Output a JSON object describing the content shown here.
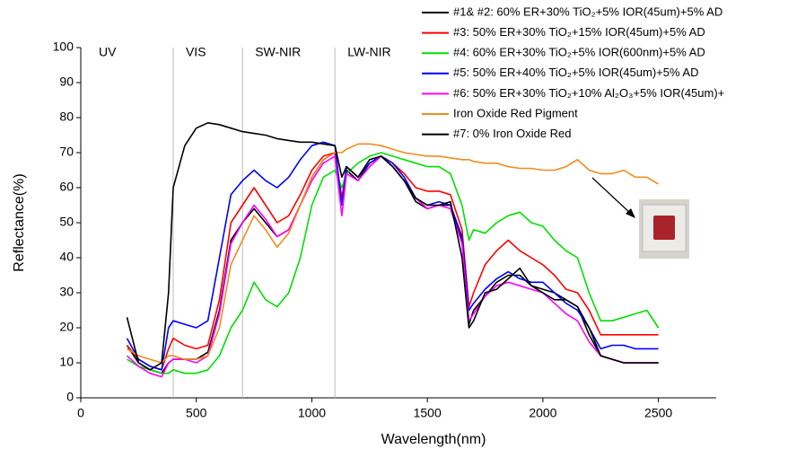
{
  "chart_data": {
    "type": "line",
    "x_label": "Wavelength(nm)",
    "y_label": "Reflectance(%)",
    "xlim": [
      0,
      2750
    ],
    "ylim": [
      0,
      100
    ],
    "xticks": [
      0,
      500,
      1000,
      1500,
      2000,
      2500
    ],
    "yticks": [
      0,
      10,
      20,
      30,
      40,
      50,
      60,
      70,
      80,
      90,
      100
    ],
    "region_boundaries": [
      400,
      700,
      1100
    ],
    "region_labels": [
      "UV",
      "VIS",
      "SW-NIR",
      "LW-NIR"
    ],
    "x": [
      200,
      250,
      300,
      350,
      380,
      400,
      450,
      500,
      550,
      600,
      650,
      700,
      750,
      800,
      850,
      900,
      950,
      1000,
      1050,
      1100,
      1130,
      1150,
      1200,
      1250,
      1300,
      1350,
      1400,
      1450,
      1500,
      1550,
      1600,
      1650,
      1680,
      1700,
      1750,
      1800,
      1850,
      1900,
      1950,
      2000,
      2050,
      2100,
      2150,
      2200,
      2250,
      2300,
      2350,
      2400,
      2450,
      2500
    ],
    "series": [
      {
        "name": "#1& #2: 60% ER+30% TiO₂+5% IOR(45um)+5% AD",
        "color": "#000000",
        "values": [
          15,
          10,
          8,
          7,
          10,
          11,
          11,
          11,
          13,
          25,
          45,
          50,
          54,
          50,
          46,
          48,
          55,
          63,
          68,
          70,
          56,
          65,
          62,
          67,
          69,
          66,
          62,
          56,
          54,
          55,
          55,
          45,
          21,
          25,
          29,
          33,
          35,
          35,
          32,
          31,
          30,
          28,
          26,
          18,
          12,
          11,
          10,
          10,
          10,
          10
        ]
      },
      {
        "name": "#3: 50% ER+30% TiO₂+15% IOR(45um)+5% AD",
        "color": "#ff0000",
        "values": [
          15,
          11,
          9,
          8,
          14,
          17,
          15,
          14,
          15,
          28,
          50,
          55,
          60,
          55,
          50,
          52,
          58,
          65,
          69,
          70,
          57,
          66,
          63,
          67,
          69,
          67,
          64,
          60,
          59,
          59,
          58,
          48,
          26,
          30,
          38,
          42,
          45,
          42,
          40,
          38,
          35,
          31,
          30,
          25,
          18,
          18,
          18,
          18,
          18,
          18
        ]
      },
      {
        "name": "#4: 60% ER+30% TiO₂+5% IOR(600nm)+5% AD",
        "color": "#00e000",
        "values": [
          11,
          9,
          8,
          7,
          7,
          8,
          7,
          7,
          8,
          12,
          20,
          25,
          33,
          28,
          26,
          30,
          40,
          55,
          63,
          65,
          60,
          64,
          67,
          69,
          70,
          69,
          68,
          67,
          66,
          66,
          64,
          55,
          45,
          48,
          47,
          50,
          52,
          53,
          50,
          49,
          45,
          42,
          40,
          30,
          22,
          22,
          23,
          24,
          25,
          20
        ]
      },
      {
        "name": "#5: 50% ER+40% TiO₂+5% IOR(45um)+5% AD",
        "color": "#0000ff",
        "values": [
          17,
          11,
          9,
          8,
          20,
          22,
          21,
          20,
          22,
          40,
          58,
          62,
          65,
          62,
          60,
          63,
          68,
          72,
          73,
          72,
          55,
          66,
          63,
          67,
          69,
          67,
          63,
          57,
          55,
          56,
          55,
          46,
          25,
          27,
          31,
          34,
          36,
          34,
          33,
          33,
          30,
          27,
          25,
          20,
          14,
          15,
          15,
          14,
          14,
          14
        ]
      },
      {
        "name": "#6: 50% ER+30% TiO₂+10% Al₂O₃+5% IOR(45um)+",
        "color": "#ff00ff",
        "values": [
          12,
          9,
          7,
          6,
          10,
          11,
          11,
          10,
          12,
          24,
          44,
          50,
          55,
          51,
          46,
          48,
          55,
          62,
          67,
          69,
          52,
          64,
          62,
          66,
          69,
          66,
          62,
          57,
          54,
          55,
          54,
          44,
          22,
          24,
          29,
          32,
          33,
          32,
          31,
          30,
          27,
          24,
          22,
          16,
          12,
          11,
          10,
          10,
          10,
          10
        ]
      },
      {
        "name": "Iron Oxide Red Pigment",
        "color": "#f08c1e",
        "values": [
          14,
          12,
          11,
          10,
          12,
          12,
          11,
          11,
          12,
          20,
          38,
          45,
          52,
          48,
          43,
          47,
          55,
          63,
          68,
          70,
          70,
          71,
          72.5,
          72.5,
          72,
          71,
          70,
          69.5,
          69,
          69,
          68.5,
          68,
          68,
          67.5,
          67,
          67,
          66,
          65.5,
          65.5,
          65,
          65,
          66,
          68,
          65,
          64,
          64,
          65,
          63,
          63,
          61
        ]
      },
      {
        "name": "#7: 0% Iron Oxide Red",
        "color": "#000000",
        "values": [
          23,
          10,
          8,
          10,
          30,
          60,
          72,
          77,
          78.5,
          78,
          77,
          76,
          75.5,
          75,
          74,
          73.5,
          73,
          73,
          72.5,
          72,
          63,
          66,
          63,
          68,
          69,
          66,
          62,
          57,
          55,
          55,
          56,
          40,
          20,
          22,
          30,
          31,
          34,
          37,
          32,
          30,
          28,
          28,
          26,
          20,
          12,
          11,
          10,
          10,
          10,
          10
        ]
      }
    ]
  }
}
